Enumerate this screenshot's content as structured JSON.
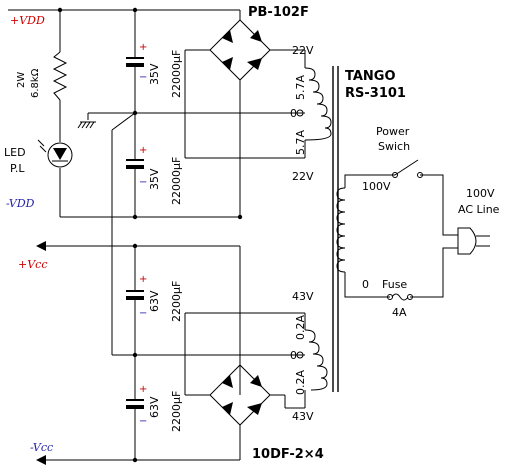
{
  "colors": {
    "positive_rail": "#cc0000",
    "negative_rail": "#2222aa",
    "polarity_plus": "#cc0000",
    "polarity_minus": "#2222aa"
  },
  "rails": {
    "vdd_pos": "+VDD",
    "vdd_neg": "-VDD",
    "vcc_pos": "+Vcc",
    "vcc_neg": "-Vcc"
  },
  "resistor": {
    "watt": "2W",
    "value": "6.8kΩ"
  },
  "led": {
    "line1": "LED",
    "line2": "P.L"
  },
  "bridge_top": "PB-102F",
  "bridge_bottom": "10DF-2×4",
  "caps": [
    {
      "volt": "35V",
      "cap": "22000μF"
    },
    {
      "volt": "35V",
      "cap": "22000μF"
    },
    {
      "volt": "63V",
      "cap": "2200μF"
    },
    {
      "volt": "63V",
      "cap": "2200μF"
    }
  ],
  "polarity": {
    "plus": "+",
    "minus": "−"
  },
  "transformer": {
    "brand": "TANGO",
    "model": "RS-3101",
    "sec_top_volt_a": "22V",
    "sec_top_volt_b": "22V",
    "sec_top_cur_a": "5.7A",
    "sec_top_cur_b": "5.7A",
    "sec_top_tap": "0",
    "sec_bot_volt_a": "43V",
    "sec_bot_volt_b": "43V",
    "sec_bot_cur_a": "0.2A",
    "sec_bot_cur_b": "0.2A",
    "sec_bot_tap": "0",
    "pri_volt": "100V",
    "pri_zero": "0"
  },
  "switch": {
    "line1": "Power",
    "line2": "Swich"
  },
  "fuse": {
    "label": "Fuse",
    "rating": "4A"
  },
  "ac": {
    "line1": "100V",
    "line2": "AC Line"
  }
}
